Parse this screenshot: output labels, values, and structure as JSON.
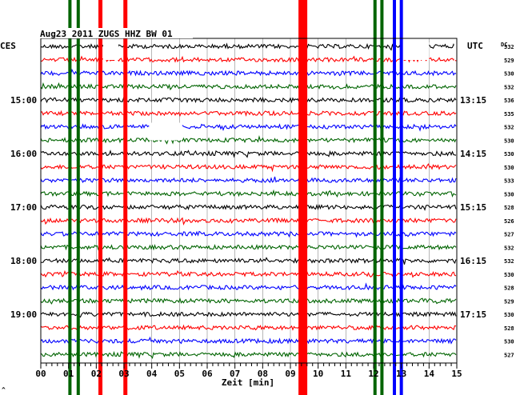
{
  "chart_data": {
    "type": "line",
    "title": "Aug23 2011  ZUGS HHZ BW 01",
    "left_timezone": "CES",
    "right_timezone": "UTC",
    "dc_label": "DC",
    "xlabel": "Zeit [min]",
    "xlim": [
      0,
      15
    ],
    "x_ticks": [
      "00",
      "01",
      "02",
      "03",
      "04",
      "05",
      "06",
      "07",
      "08",
      "09",
      "10",
      "11",
      "12",
      "13",
      "14",
      "15"
    ],
    "grid": true,
    "trace_colors": [
      "#000000",
      "#ff0000",
      "#0000ff",
      "#006400"
    ],
    "left_hour_labels": [
      {
        "row": 4,
        "label": "15:00"
      },
      {
        "row": 8,
        "label": "16:00"
      },
      {
        "row": 12,
        "label": "17:00"
      },
      {
        "row": 16,
        "label": "18:00"
      },
      {
        "row": 20,
        "label": "19:00"
      }
    ],
    "right_hour_labels": [
      {
        "row": 4,
        "label": "13:15"
      },
      {
        "row": 8,
        "label": "14:15"
      },
      {
        "row": 12,
        "label": "15:15"
      },
      {
        "row": 16,
        "label": "16:15"
      },
      {
        "row": 20,
        "label": "17:15"
      }
    ],
    "dc_values": [
      532,
      529,
      530,
      532,
      536,
      535,
      532,
      530,
      530,
      530,
      533,
      530,
      528,
      526,
      527,
      532,
      532,
      530,
      528,
      529,
      530,
      528,
      530,
      527
    ],
    "gaps": [
      {
        "row": 0,
        "from_min": 2.25,
        "to_min": 2.8
      },
      {
        "row": 0,
        "from_min": 13.0,
        "to_min": 14.0
      },
      {
        "row": 0,
        "from_min": 14.9,
        "to_min": 15.0
      },
      {
        "row": 6,
        "from_min": 3.9,
        "to_min": 5.1
      }
    ],
    "events": [
      {
        "minute": 1.05,
        "color": "#006400",
        "width": 4
      },
      {
        "minute": 1.35,
        "color": "#006400",
        "width": 4
      },
      {
        "minute": 2.15,
        "color": "#ff0000",
        "width": 5
      },
      {
        "minute": 3.05,
        "color": "#ff0000",
        "width": 5
      },
      {
        "minute": 9.45,
        "color": "#ff0000",
        "width": 11
      },
      {
        "minute": 12.05,
        "color": "#006400",
        "width": 4
      },
      {
        "minute": 12.3,
        "color": "#006400",
        "width": 4
      },
      {
        "minute": 12.75,
        "color": "#0000ff",
        "width": 4
      },
      {
        "minute": 13.0,
        "color": "#0000ff",
        "width": 4
      }
    ],
    "footer_mark": "^"
  }
}
